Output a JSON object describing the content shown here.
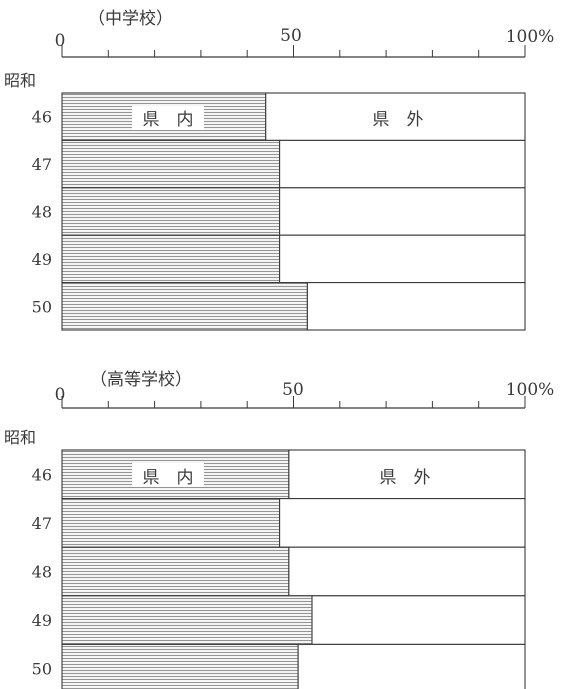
{
  "chart_data": [
    {
      "type": "bar",
      "orientation": "horizontal",
      "stacked": true,
      "title": "（中学校）",
      "era_label": "昭和",
      "categories": [
        "46",
        "47",
        "48",
        "49",
        "50"
      ],
      "series": [
        {
          "name": "県　内",
          "values": [
            44,
            47,
            47,
            47,
            53
          ]
        },
        {
          "name": "県　外",
          "values": [
            56,
            53,
            53,
            53,
            47
          ]
        }
      ],
      "xlim": [
        0,
        100
      ],
      "tick_labels": [
        "0",
        "50",
        "100%"
      ],
      "xlabel": "",
      "ylabel": ""
    },
    {
      "type": "bar",
      "orientation": "horizontal",
      "stacked": true,
      "title": "（高等学校）",
      "era_label": "昭和",
      "categories": [
        "46",
        "47",
        "48",
        "49",
        "50"
      ],
      "series": [
        {
          "name": "県　内",
          "values": [
            49,
            47,
            49,
            54,
            51
          ]
        },
        {
          "name": "県　外",
          "values": [
            51,
            53,
            51,
            46,
            49
          ]
        }
      ],
      "xlim": [
        0,
        100
      ],
      "tick_labels": [
        "0",
        "50",
        "100%"
      ],
      "xlabel": "",
      "ylabel": ""
    }
  ],
  "colors": {
    "ink": "#3a3a3a",
    "hatch_bg": "#f4f4f4",
    "hatch_line": "#8a8a8a",
    "outside_fill": "#ffffff"
  }
}
